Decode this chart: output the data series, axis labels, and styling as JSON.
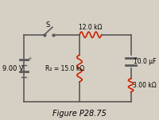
{
  "bg_color": "#d6d0c4",
  "text_color": "#000000",
  "wire_color": "#5a5a5a",
  "component_color": "#cc2200",
  "title": "Figure P28.75",
  "title_fontsize": 7,
  "label_fontsize": 6,
  "battery_label": "9.00 V",
  "r1_label": "12.0 kΩ",
  "r2_label": "R₂ = 15.0 kΩ",
  "r3_label": "3.00 kΩ",
  "cap_label": "10.0 μF",
  "switch_label": "S"
}
